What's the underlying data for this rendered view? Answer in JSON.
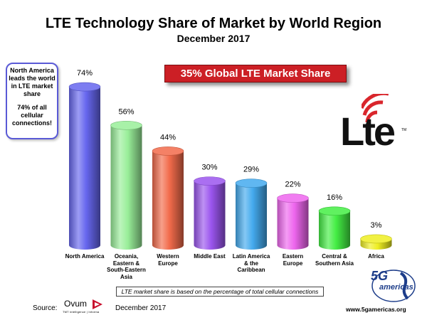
{
  "chart_data": {
    "type": "bar",
    "title": "LTE Technology Share of Market by World Region",
    "subtitle": "December 2017",
    "categories": [
      "North America",
      "Oceania, Eastern & South-Eastern Asia",
      "Western Europe",
      "Middle East",
      "Latin America & the Caribbean",
      "Eastern Europe",
      "Central & Southern Asia",
      "Africa"
    ],
    "values": [
      74,
      56,
      44,
      30,
      29,
      22,
      16,
      3
    ],
    "value_labels": [
      "74%",
      "56%",
      "44%",
      "30%",
      "29%",
      "22%",
      "16%",
      "3%"
    ],
    "colors": [
      "#6666ee",
      "#99ee99",
      "#f26b4b",
      "#9b55ee",
      "#44aaee",
      "#ee66ee",
      "#44ee44",
      "#eeee22"
    ],
    "ylim": [
      0,
      80
    ],
    "grid": false,
    "legend": "none"
  },
  "callout": {
    "line1": "North America leads the world in LTE market share",
    "line2": "74% of all cellular connections!"
  },
  "banner": "35% Global LTE Market Share",
  "lte_logo": {
    "word": "Lte",
    "tm": "TM"
  },
  "footnote": "LTE market share is based on the percentage of total cellular connections",
  "source": {
    "label": "Source:",
    "org": "Ovum",
    "org_tagline": "TMT intelligence | Informa",
    "date": "December 2017"
  },
  "publisher": {
    "logo_big": "5G",
    "logo_small": "americas",
    "website": "www.5gamericas.org"
  }
}
